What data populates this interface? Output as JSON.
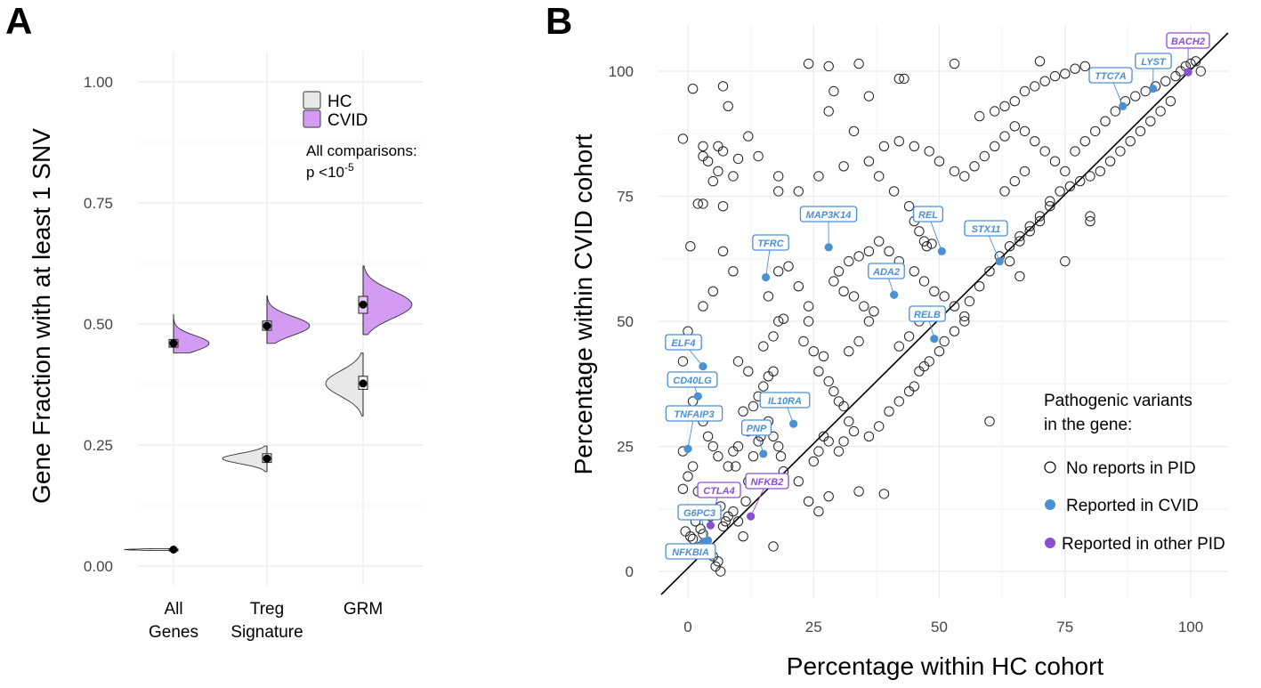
{
  "panels": {
    "a": "A",
    "b": "B"
  },
  "colors": {
    "hc_fill": "#e8e8e8",
    "cvid_fill": "#d39cf2",
    "cvid_reported": "#4a90d2",
    "other_pid": "#8a4fd0",
    "grid": "#ebebeb",
    "tick_text": "#444444"
  },
  "chart_data": [
    {
      "type": "violin",
      "panel": "A",
      "ylabel": "Gene Fraction with at least 1 SNV",
      "ylim": [
        0.0,
        1.0
      ],
      "yticks": [
        "0.00",
        "0.25",
        "0.50",
        "0.75",
        "1.00"
      ],
      "categories": [
        {
          "lines": [
            "All",
            "Genes"
          ]
        },
        {
          "lines": [
            "Treg",
            "Signature"
          ]
        },
        {
          "lines": [
            "GRM"
          ]
        }
      ],
      "legend": [
        "HC",
        "CVID"
      ],
      "annotation": {
        "line1": "All comparisons:",
        "line2_prefix": "p <10",
        "line2_exp": "-5"
      },
      "series": [
        {
          "name": "HC",
          "median": [
            0.034,
            0.222,
            0.377
          ],
          "q1": [
            0.033,
            0.214,
            0.365
          ],
          "q3": [
            0.035,
            0.232,
            0.392
          ],
          "min": [
            0.032,
            0.195,
            0.31
          ],
          "max": [
            0.036,
            0.248,
            0.44
          ]
        },
        {
          "name": "CVID",
          "median": [
            0.46,
            0.496,
            0.54
          ],
          "q1": [
            0.452,
            0.487,
            0.522
          ],
          "q3": [
            0.468,
            0.506,
            0.557
          ],
          "min": [
            0.44,
            0.46,
            0.478
          ],
          "max": [
            0.52,
            0.558,
            0.62
          ]
        }
      ]
    },
    {
      "type": "scatter",
      "panel": "B",
      "xlabel": "Percentage within HC cohort",
      "ylabel": "Percentage within CVID cohort",
      "xlim": [
        -3,
        105
      ],
      "ylim": [
        -5,
        105
      ],
      "xticks": [
        "0",
        "25",
        "50",
        "75",
        "100"
      ],
      "yticks": [
        "0",
        "25",
        "50",
        "75",
        "100"
      ],
      "reference_line": "y = x",
      "legend": {
        "title_line1": "Pathogenic variants",
        "title_line2": "in the gene:",
        "items": [
          "No reports in PID",
          "Reported in CVID",
          "Reported in other PID"
        ]
      },
      "reported_cvid": [
        {
          "gene": "BACH2",
          "x": 99.5,
          "y": 99.8
        },
        {
          "gene": "LYST",
          "x": 92.5,
          "y": 96.5
        },
        {
          "gene": "TTC7A",
          "x": 86.5,
          "y": 93.0
        },
        {
          "gene": "MAP3K14",
          "x": 28.0,
          "y": 64.8
        },
        {
          "gene": "REL",
          "x": 50.5,
          "y": 64.0
        },
        {
          "gene": "STX11",
          "x": 62.0,
          "y": 62.0
        },
        {
          "gene": "TFRC",
          "x": 15.5,
          "y": 58.8
        },
        {
          "gene": "ADA2",
          "x": 41.0,
          "y": 55.3
        },
        {
          "gene": "RELB",
          "x": 49.0,
          "y": 46.5
        },
        {
          "gene": "ELF4",
          "x": 3.0,
          "y": 41.0
        },
        {
          "gene": "CD40LG",
          "x": 2.0,
          "y": 35.0
        },
        {
          "gene": "IL10RA",
          "x": 21.0,
          "y": 29.5
        },
        {
          "gene": "TNFAIP3",
          "x": 0.0,
          "y": 24.5
        },
        {
          "gene": "PNP",
          "x": 15.0,
          "y": 23.5
        },
        {
          "gene": "G6PC3",
          "x": 4.0,
          "y": 6.2
        },
        {
          "gene": "NFKBIA",
          "x": 3.0,
          "y": 5.8
        }
      ],
      "other_pid": [
        {
          "gene": "CTLA4",
          "x": 4.5,
          "y": 9.2
        },
        {
          "gene": "NFKB2",
          "x": 12.5,
          "y": 11.0
        }
      ],
      "no_reports": [
        [
          -1,
          86.5
        ],
        [
          1,
          96.5
        ],
        [
          3,
          85
        ],
        [
          6,
          85
        ],
        [
          7,
          97
        ],
        [
          8,
          93
        ],
        [
          4,
          82
        ],
        [
          5,
          78
        ],
        [
          10,
          82.5
        ],
        [
          2,
          73.5
        ],
        [
          3,
          73.5
        ],
        [
          7,
          73
        ],
        [
          0.5,
          65
        ],
        [
          -1,
          16.5
        ],
        [
          -0.5,
          8
        ],
        [
          0.5,
          7
        ],
        [
          1,
          6.5
        ],
        [
          2.5,
          5
        ],
        [
          3.5,
          4
        ],
        [
          5,
          3
        ],
        [
          6,
          2
        ],
        [
          6.5,
          0
        ],
        [
          5.5,
          1
        ],
        [
          4.5,
          11
        ],
        [
          5.5,
          12
        ],
        [
          6.5,
          13
        ],
        [
          7,
          9
        ],
        [
          7.5,
          10
        ],
        [
          8,
          11
        ],
        [
          9,
          12
        ],
        [
          10,
          10
        ],
        [
          11,
          7
        ],
        [
          11.5,
          14
        ],
        [
          12,
          18
        ],
        [
          13,
          23
        ],
        [
          14,
          26
        ],
        [
          14.5,
          27
        ],
        [
          15,
          29
        ],
        [
          16,
          30
        ],
        [
          17,
          27
        ],
        [
          18,
          25
        ],
        [
          18.5,
          23
        ],
        [
          19,
          20
        ],
        [
          9,
          24
        ],
        [
          10,
          25
        ],
        [
          8,
          21
        ],
        [
          9.5,
          21
        ],
        [
          12,
          28
        ],
        [
          11,
          32
        ],
        [
          13,
          33
        ],
        [
          14,
          35
        ],
        [
          15,
          37
        ],
        [
          16,
          39
        ],
        [
          17,
          40
        ],
        [
          12,
          40
        ],
        [
          10,
          42
        ],
        [
          15,
          45
        ],
        [
          17,
          47
        ],
        [
          18,
          50
        ],
        [
          19,
          50.5
        ],
        [
          16,
          55
        ],
        [
          18,
          60
        ],
        [
          20,
          61
        ],
        [
          22,
          57
        ],
        [
          24,
          53
        ],
        [
          24,
          50
        ],
        [
          23,
          46
        ],
        [
          25,
          44
        ],
        [
          27,
          43
        ],
        [
          26,
          40
        ],
        [
          28,
          38
        ],
        [
          29,
          36
        ],
        [
          30,
          34
        ],
        [
          31,
          33
        ],
        [
          32,
          30
        ],
        [
          33,
          28
        ],
        [
          27,
          27
        ],
        [
          28,
          26
        ],
        [
          26,
          24
        ],
        [
          25,
          22
        ],
        [
          30,
          24
        ],
        [
          31,
          26
        ],
        [
          22,
          18
        ],
        [
          24,
          14
        ],
        [
          26,
          12
        ],
        [
          28,
          15
        ],
        [
          17,
          5
        ],
        [
          34,
          16
        ],
        [
          39,
          15.5
        ],
        [
          36,
          27
        ],
        [
          38,
          29
        ],
        [
          40,
          32
        ],
        [
          42,
          34
        ],
        [
          44,
          36
        ],
        [
          45,
          37
        ],
        [
          46,
          40
        ],
        [
          47,
          41
        ],
        [
          48,
          42
        ],
        [
          50,
          44
        ],
        [
          51,
          46
        ],
        [
          53,
          48
        ],
        [
          55,
          50
        ],
        [
          42,
          45
        ],
        [
          44,
          47
        ],
        [
          46,
          50
        ],
        [
          48,
          52
        ],
        [
          32,
          44
        ],
        [
          34,
          46
        ],
        [
          36,
          50
        ],
        [
          37,
          52
        ],
        [
          35,
          53
        ],
        [
          33,
          55
        ],
        [
          31,
          56
        ],
        [
          29,
          58
        ],
        [
          30,
          60
        ],
        [
          32,
          62
        ],
        [
          34,
          63
        ],
        [
          36,
          64
        ],
        [
          38,
          66
        ],
        [
          40,
          64
        ],
        [
          42,
          62
        ],
        [
          45,
          60
        ],
        [
          47,
          58
        ],
        [
          49,
          56
        ],
        [
          51,
          55
        ],
        [
          53,
          53
        ],
        [
          55,
          51
        ],
        [
          56,
          54
        ],
        [
          58,
          57
        ],
        [
          60,
          60
        ],
        [
          62,
          63
        ],
        [
          64,
          65
        ],
        [
          66,
          67
        ],
        [
          68,
          69
        ],
        [
          70,
          71
        ],
        [
          72,
          73
        ],
        [
          47,
          66
        ],
        [
          47.5,
          65
        ],
        [
          48.5,
          65.5
        ],
        [
          46,
          68
        ],
        [
          45,
          70
        ],
        [
          44,
          73
        ],
        [
          41,
          76
        ],
        [
          38,
          79
        ],
        [
          36,
          82
        ],
        [
          39,
          85
        ],
        [
          42,
          86
        ],
        [
          45,
          85
        ],
        [
          48,
          84
        ],
        [
          50,
          82
        ],
        [
          53,
          80
        ],
        [
          55,
          79
        ],
        [
          57,
          81
        ],
        [
          59,
          83
        ],
        [
          61,
          85
        ],
        [
          63,
          87
        ],
        [
          65,
          89
        ],
        [
          67,
          88
        ],
        [
          69,
          86
        ],
        [
          71,
          84
        ],
        [
          73,
          82
        ],
        [
          75,
          80
        ],
        [
          77,
          84
        ],
        [
          79,
          86
        ],
        [
          81,
          88
        ],
        [
          83,
          90
        ],
        [
          85,
          92
        ],
        [
          87,
          94
        ],
        [
          89,
          95
        ],
        [
          91,
          96
        ],
        [
          93,
          97
        ],
        [
          95,
          98
        ],
        [
          97,
          99
        ],
        [
          98,
          100
        ],
        [
          99,
          101
        ],
        [
          100,
          101.5
        ],
        [
          101,
          102
        ],
        [
          102,
          100
        ],
        [
          96,
          94
        ],
        [
          94,
          92
        ],
        [
          92,
          90
        ],
        [
          90,
          88
        ],
        [
          88,
          86
        ],
        [
          86,
          84
        ],
        [
          84,
          82
        ],
        [
          82,
          80
        ],
        [
          80,
          79
        ],
        [
          78,
          78
        ],
        [
          76,
          77
        ],
        [
          74,
          76
        ],
        [
          72,
          74
        ],
        [
          70,
          70
        ],
        [
          68,
          68
        ],
        [
          66,
          66
        ],
        [
          64,
          62
        ],
        [
          75,
          62
        ],
        [
          80,
          71
        ],
        [
          80,
          70
        ],
        [
          66,
          59
        ],
        [
          60,
          30
        ],
        [
          63,
          76
        ],
        [
          65,
          78
        ],
        [
          67,
          80
        ],
        [
          58,
          91
        ],
        [
          61,
          92
        ],
        [
          63,
          93
        ],
        [
          65,
          94
        ],
        [
          67,
          96
        ],
        [
          69,
          97
        ],
        [
          71,
          98
        ],
        [
          73,
          99
        ],
        [
          75,
          99.5
        ],
        [
          77,
          100.5
        ],
        [
          79,
          101
        ],
        [
          70,
          102
        ],
        [
          53,
          101.5
        ],
        [
          42,
          98.5
        ],
        [
          43,
          98.5
        ],
        [
          24,
          101.5
        ],
        [
          28,
          101
        ],
        [
          34,
          101.5
        ],
        [
          28,
          92
        ],
        [
          29,
          96
        ],
        [
          33,
          88
        ],
        [
          36,
          95
        ],
        [
          31,
          81
        ],
        [
          26,
          79
        ],
        [
          22,
          76
        ],
        [
          18,
          79
        ],
        [
          18,
          76
        ],
        [
          14,
          83
        ],
        [
          12,
          87
        ],
        [
          9,
          79
        ],
        [
          7,
          84
        ],
        [
          6,
          80
        ],
        [
          3,
          83
        ],
        [
          7,
          64
        ],
        [
          9,
          60
        ],
        [
          5,
          56
        ],
        [
          3,
          53
        ],
        [
          0,
          48
        ],
        [
          -1,
          42
        ],
        [
          -0.5,
          38
        ],
        [
          1,
          34
        ],
        [
          3,
          30
        ],
        [
          4,
          27
        ],
        [
          5,
          25
        ],
        [
          6,
          23
        ],
        [
          1,
          21
        ],
        [
          -1,
          24
        ],
        [
          0,
          19
        ],
        [
          2,
          16
        ],
        [
          -1,
          12
        ],
        [
          1.5,
          10
        ],
        [
          2.5,
          8.5
        ],
        [
          3,
          7.5
        ]
      ]
    }
  ]
}
